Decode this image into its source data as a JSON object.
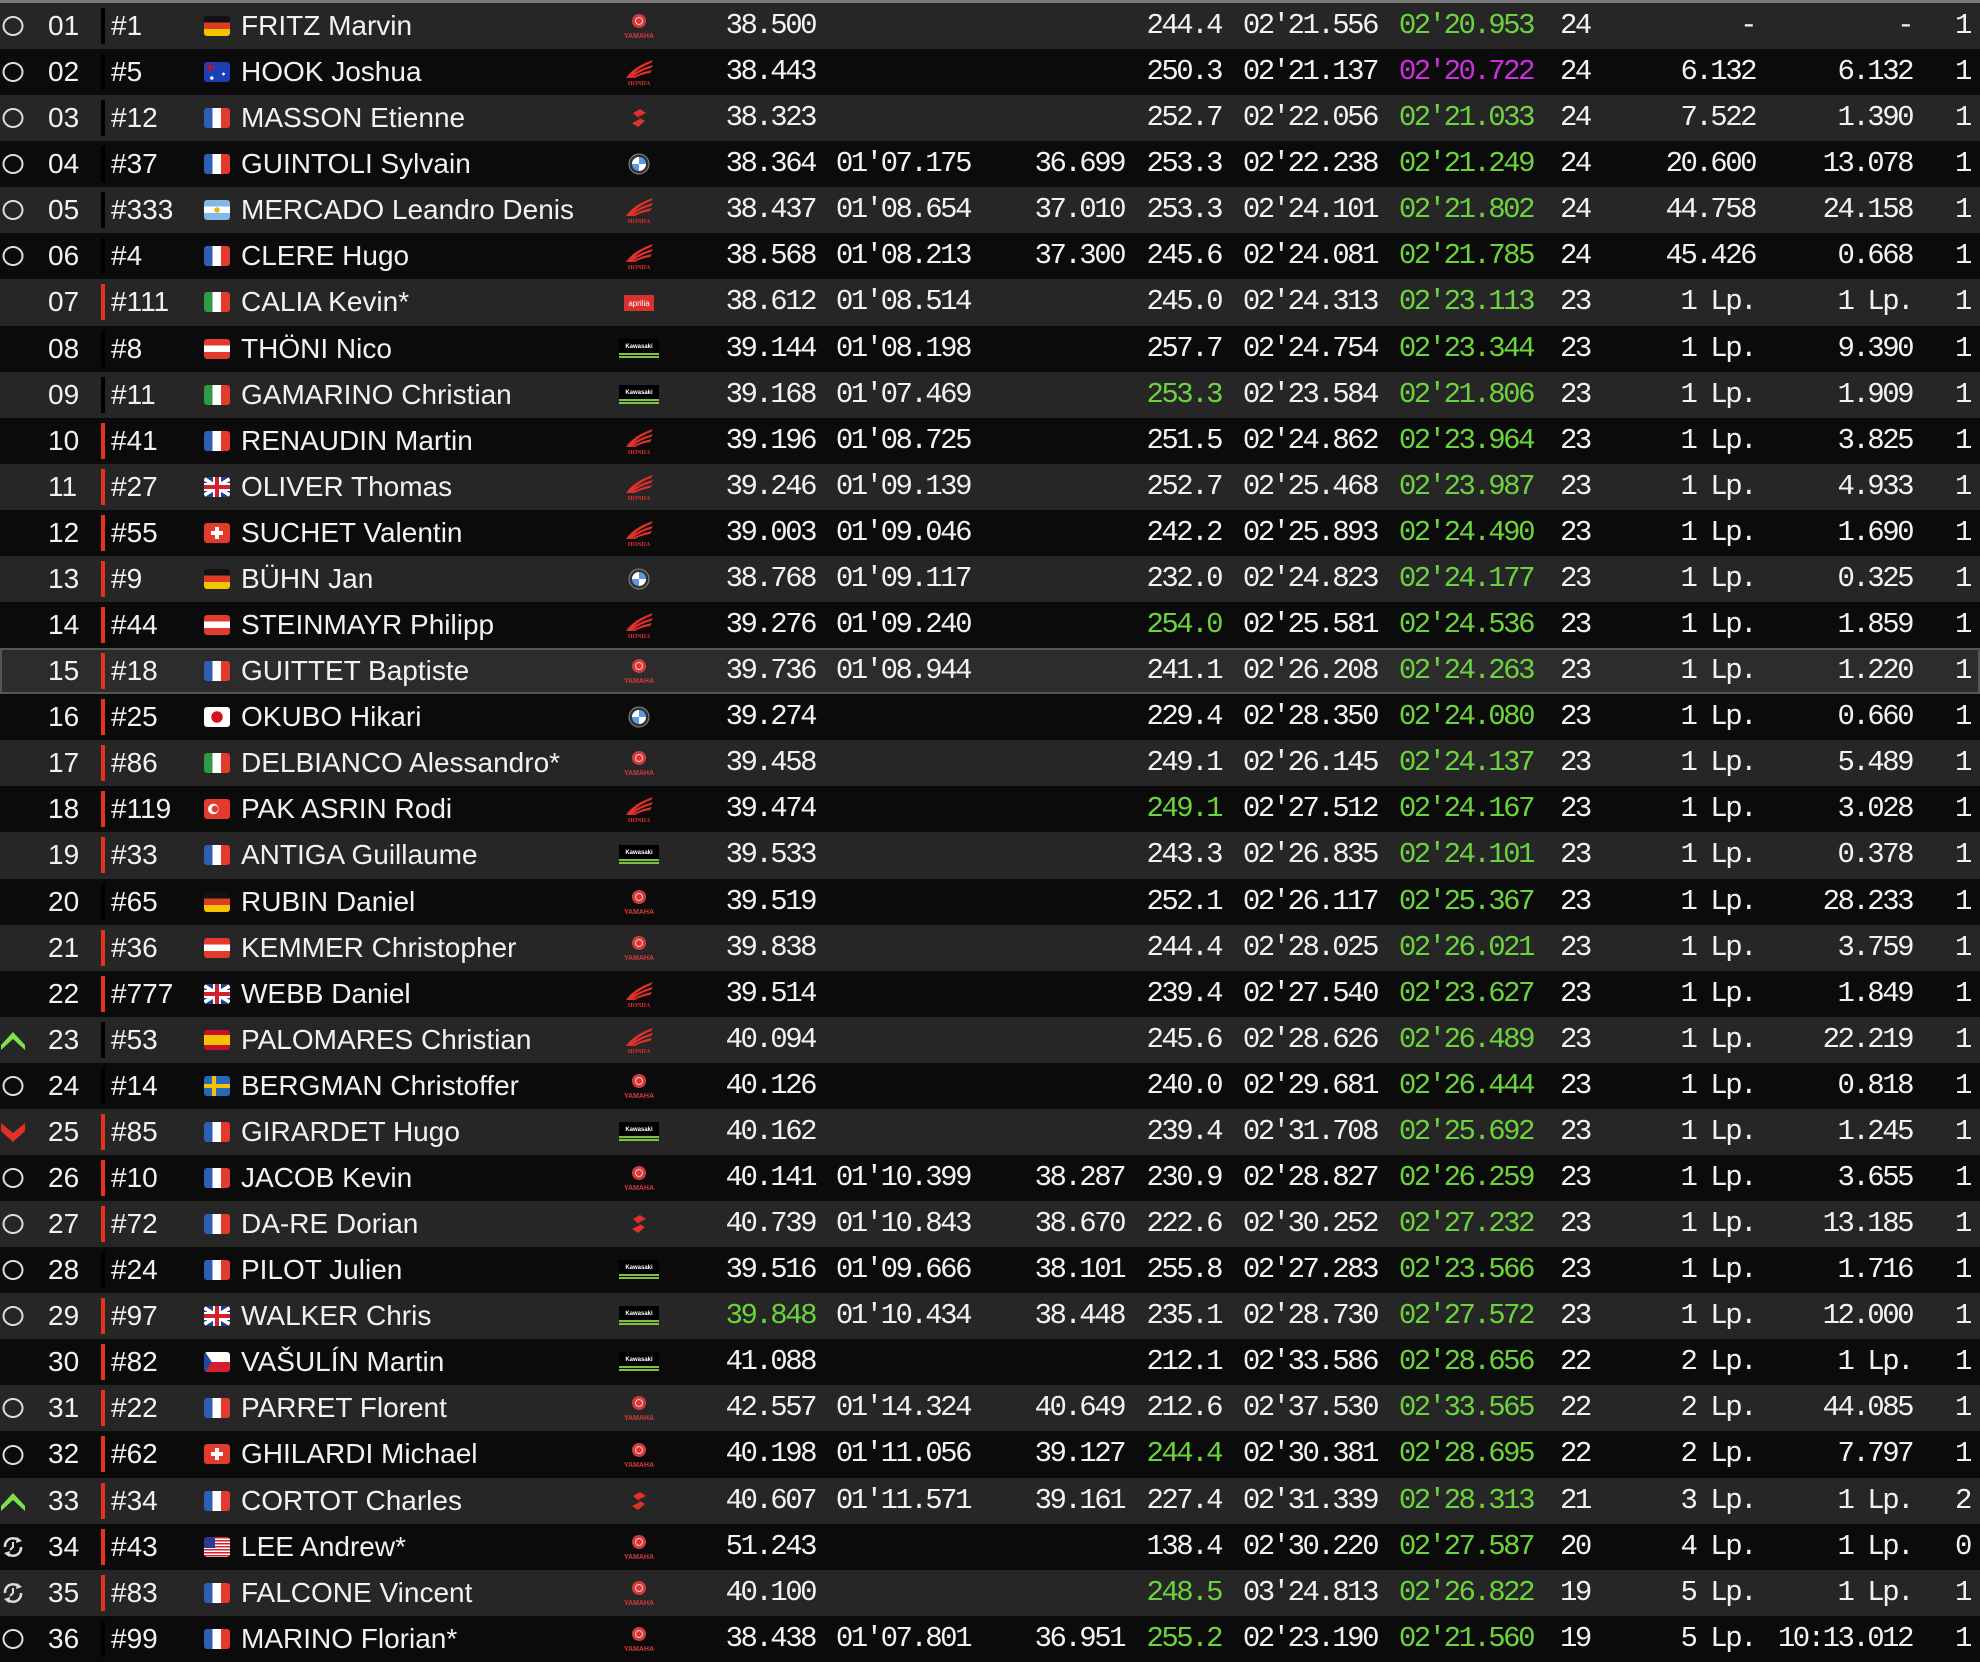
{
  "colors": {
    "green": "#6bd33d",
    "purple": "#cc2ee0",
    "bar_red": "#e8321e",
    "bar_black": "#000000",
    "row_odd": "#262626",
    "row_even": "#0b0b0b"
  },
  "rows": [
    {
      "status": "circle",
      "pos": "01",
      "bar": "black",
      "num": "#1",
      "flag": "de",
      "name": "FRITZ Marvin",
      "mfr": "yamaha",
      "s1": "38.500",
      "s2": "",
      "s3": "",
      "speed": "244.4",
      "lap": "02'21.556",
      "best": "02'20.953",
      "laps": "24",
      "gap": "-",
      "int": "-",
      "last": "1",
      "hl": {
        "best": "green"
      }
    },
    {
      "status": "circle",
      "pos": "02",
      "bar": "black",
      "num": "#5",
      "flag": "au",
      "name": "HOOK Joshua",
      "mfr": "honda",
      "s1": "38.443",
      "s2": "",
      "s3": "",
      "speed": "250.3",
      "lap": "02'21.137",
      "best": "02'20.722",
      "laps": "24",
      "gap": "6.132",
      "int": "6.132",
      "last": "1",
      "hl": {
        "best": "purple"
      }
    },
    {
      "status": "circle",
      "pos": "03",
      "bar": "black",
      "num": "#12",
      "flag": "fr",
      "name": "MASSON Etienne",
      "mfr": "suzuki",
      "s1": "38.323",
      "s2": "",
      "s3": "",
      "speed": "252.7",
      "lap": "02'22.056",
      "best": "02'21.033",
      "laps": "24",
      "gap": "7.522",
      "int": "1.390",
      "last": "1",
      "hl": {
        "best": "green"
      }
    },
    {
      "status": "circle",
      "pos": "04",
      "bar": "black",
      "num": "#37",
      "flag": "fr",
      "name": "GUINTOLI Sylvain",
      "mfr": "bmw",
      "s1": "38.364",
      "s2": "01'07.175",
      "s3": "36.699",
      "speed": "253.3",
      "lap": "02'22.238",
      "best": "02'21.249",
      "laps": "24",
      "gap": "20.600",
      "int": "13.078",
      "last": "1",
      "hl": {
        "best": "green"
      }
    },
    {
      "status": "circle",
      "pos": "05",
      "bar": "black",
      "num": "#333",
      "flag": "ar",
      "name": "MERCADO Leandro Denis",
      "mfr": "honda",
      "s1": "38.437",
      "s2": "01'08.654",
      "s3": "37.010",
      "speed": "253.3",
      "lap": "02'24.101",
      "best": "02'21.802",
      "laps": "24",
      "gap": "44.758",
      "int": "24.158",
      "last": "1",
      "hl": {
        "best": "green"
      }
    },
    {
      "status": "circle",
      "pos": "06",
      "bar": "black",
      "num": "#4",
      "flag": "fr",
      "name": "CLERE Hugo",
      "mfr": "honda",
      "s1": "38.568",
      "s2": "01'08.213",
      "s3": "37.300",
      "speed": "245.6",
      "lap": "02'24.081",
      "best": "02'21.785",
      "laps": "24",
      "gap": "45.426",
      "int": "0.668",
      "last": "1",
      "hl": {
        "best": "green"
      }
    },
    {
      "status": "none",
      "pos": "07",
      "bar": "red",
      "num": "#111",
      "flag": "it",
      "name": "CALIA Kevin*",
      "mfr": "aprilia",
      "s1": "38.612",
      "s2": "01'08.514",
      "s3": "",
      "speed": "245.0",
      "lap": "02'24.313",
      "best": "02'23.113",
      "laps": "23",
      "gap": "1 Lp.",
      "int": "1 Lp.",
      "last": "1",
      "hl": {
        "best": "green"
      }
    },
    {
      "status": "none",
      "pos": "08",
      "bar": "black",
      "num": "#8",
      "flag": "at",
      "name": "THÖNI Nico",
      "mfr": "kawasaki",
      "s1": "39.144",
      "s2": "01'08.198",
      "s3": "",
      "speed": "257.7",
      "lap": "02'24.754",
      "best": "02'23.344",
      "laps": "23",
      "gap": "1 Lp.",
      "int": "9.390",
      "last": "1",
      "hl": {
        "best": "green"
      }
    },
    {
      "status": "none",
      "pos": "09",
      "bar": "black",
      "num": "#11",
      "flag": "it",
      "name": "GAMARINO Christian",
      "mfr": "kawasaki",
      "s1": "39.168",
      "s2": "01'07.469",
      "s3": "",
      "speed": "253.3",
      "lap": "02'23.584",
      "best": "02'21.806",
      "laps": "23",
      "gap": "1 Lp.",
      "int": "1.909",
      "last": "1",
      "hl": {
        "best": "green",
        "speed": "green"
      }
    },
    {
      "status": "none",
      "pos": "10",
      "bar": "red",
      "num": "#41",
      "flag": "fr",
      "name": "RENAUDIN Martin",
      "mfr": "honda",
      "s1": "39.196",
      "s2": "01'08.725",
      "s3": "",
      "speed": "251.5",
      "lap": "02'24.862",
      "best": "02'23.964",
      "laps": "23",
      "gap": "1 Lp.",
      "int": "3.825",
      "last": "1",
      "hl": {
        "best": "green"
      }
    },
    {
      "status": "none",
      "pos": "11",
      "bar": "red",
      "num": "#27",
      "flag": "gb",
      "name": "OLIVER Thomas",
      "mfr": "honda",
      "s1": "39.246",
      "s2": "01'09.139",
      "s3": "",
      "speed": "252.7",
      "lap": "02'25.468",
      "best": "02'23.987",
      "laps": "23",
      "gap": "1 Lp.",
      "int": "4.933",
      "last": "1",
      "hl": {
        "best": "green"
      }
    },
    {
      "status": "none",
      "pos": "12",
      "bar": "red",
      "num": "#55",
      "flag": "ch",
      "name": "SUCHET Valentin",
      "mfr": "honda",
      "s1": "39.003",
      "s2": "01'09.046",
      "s3": "",
      "speed": "242.2",
      "lap": "02'25.893",
      "best": "02'24.490",
      "laps": "23",
      "gap": "1 Lp.",
      "int": "1.690",
      "last": "1",
      "hl": {
        "best": "green"
      }
    },
    {
      "status": "none",
      "pos": "13",
      "bar": "red",
      "num": "#9",
      "flag": "de",
      "name": "BÜHN Jan",
      "mfr": "bmw",
      "s1": "38.768",
      "s2": "01'09.117",
      "s3": "",
      "speed": "232.0",
      "lap": "02'24.823",
      "best": "02'24.177",
      "laps": "23",
      "gap": "1 Lp.",
      "int": "0.325",
      "last": "1",
      "hl": {
        "best": "green"
      }
    },
    {
      "status": "none",
      "pos": "14",
      "bar": "red",
      "num": "#44",
      "flag": "at",
      "name": "STEINMAYR Philipp",
      "mfr": "honda",
      "s1": "39.276",
      "s2": "01'09.240",
      "s3": "",
      "speed": "254.0",
      "lap": "02'25.581",
      "best": "02'24.536",
      "laps": "23",
      "gap": "1 Lp.",
      "int": "1.859",
      "last": "1",
      "hl": {
        "best": "green",
        "speed": "green"
      }
    },
    {
      "status": "none",
      "pos": "15",
      "bar": "red",
      "num": "#18",
      "flag": "fr",
      "name": "GUITTET Baptiste",
      "mfr": "yamaha",
      "s1": "39.736",
      "s2": "01'08.944",
      "s3": "",
      "speed": "241.1",
      "lap": "02'26.208",
      "best": "02'24.263",
      "laps": "23",
      "gap": "1 Lp.",
      "int": "1.220",
      "last": "1",
      "selected": true,
      "hl": {
        "best": "green"
      }
    },
    {
      "status": "none",
      "pos": "16",
      "bar": "red",
      "num": "#25",
      "flag": "jp",
      "name": "OKUBO Hikari",
      "mfr": "bmw",
      "s1": "39.274",
      "s2": "",
      "s3": "",
      "speed": "229.4",
      "lap": "02'28.350",
      "best": "02'24.080",
      "laps": "23",
      "gap": "1 Lp.",
      "int": "0.660",
      "last": "1",
      "hl": {
        "best": "green"
      }
    },
    {
      "status": "none",
      "pos": "17",
      "bar": "red",
      "num": "#86",
      "flag": "it",
      "name": "DELBIANCO Alessandro*",
      "mfr": "yamaha",
      "s1": "39.458",
      "s2": "",
      "s3": "",
      "speed": "249.1",
      "lap": "02'26.145",
      "best": "02'24.137",
      "laps": "23",
      "gap": "1 Lp.",
      "int": "5.489",
      "last": "1",
      "hl": {
        "best": "green"
      }
    },
    {
      "status": "none",
      "pos": "18",
      "bar": "red",
      "num": "#119",
      "flag": "tr",
      "name": "PAK ASRIN Rodi",
      "mfr": "honda",
      "s1": "39.474",
      "s2": "",
      "s3": "",
      "speed": "249.1",
      "lap": "02'27.512",
      "best": "02'24.167",
      "laps": "23",
      "gap": "1 Lp.",
      "int": "3.028",
      "last": "1",
      "hl": {
        "best": "green",
        "speed": "green"
      }
    },
    {
      "status": "none",
      "pos": "19",
      "bar": "red",
      "num": "#33",
      "flag": "fr",
      "name": "ANTIGA Guillaume",
      "mfr": "kawasaki",
      "s1": "39.533",
      "s2": "",
      "s3": "",
      "speed": "243.3",
      "lap": "02'26.835",
      "best": "02'24.101",
      "laps": "23",
      "gap": "1 Lp.",
      "int": "0.378",
      "last": "1",
      "hl": {
        "best": "green"
      }
    },
    {
      "status": "none",
      "pos": "20",
      "bar": "black",
      "num": "#65",
      "flag": "de",
      "name": "RUBIN Daniel",
      "mfr": "yamaha",
      "s1": "39.519",
      "s2": "",
      "s3": "",
      "speed": "252.1",
      "lap": "02'26.117",
      "best": "02'25.367",
      "laps": "23",
      "gap": "1 Lp.",
      "int": "28.233",
      "last": "1",
      "hl": {
        "best": "green"
      }
    },
    {
      "status": "none",
      "pos": "21",
      "bar": "red",
      "num": "#36",
      "flag": "at",
      "name": "KEMMER Christopher",
      "mfr": "yamaha",
      "s1": "39.838",
      "s2": "",
      "s3": "",
      "speed": "244.4",
      "lap": "02'28.025",
      "best": "02'26.021",
      "laps": "23",
      "gap": "1 Lp.",
      "int": "3.759",
      "last": "1",
      "hl": {
        "best": "green"
      }
    },
    {
      "status": "none",
      "pos": "22",
      "bar": "red",
      "num": "#777",
      "flag": "gb",
      "name": "WEBB Daniel",
      "mfr": "honda",
      "s1": "39.514",
      "s2": "",
      "s3": "",
      "speed": "239.4",
      "lap": "02'27.540",
      "best": "02'23.627",
      "laps": "23",
      "gap": "1 Lp.",
      "int": "1.849",
      "last": "1",
      "hl": {
        "best": "green"
      }
    },
    {
      "status": "up",
      "pos": "23",
      "bar": "black",
      "num": "#53",
      "flag": "es",
      "name": "PALOMARES Christian",
      "mfr": "honda",
      "s1": "40.094",
      "s2": "",
      "s3": "",
      "speed": "245.6",
      "lap": "02'28.626",
      "best": "02'26.489",
      "laps": "23",
      "gap": "1 Lp.",
      "int": "22.219",
      "last": "1",
      "hl": {
        "best": "green"
      }
    },
    {
      "status": "circle",
      "pos": "24",
      "bar": "black",
      "num": "#14",
      "flag": "se",
      "name": "BERGMAN Christoffer",
      "mfr": "yamaha",
      "s1": "40.126",
      "s2": "",
      "s3": "",
      "speed": "240.0",
      "lap": "02'29.681",
      "best": "02'26.444",
      "laps": "23",
      "gap": "1 Lp.",
      "int": "0.818",
      "last": "1",
      "hl": {
        "best": "green"
      }
    },
    {
      "status": "down",
      "pos": "25",
      "bar": "red",
      "num": "#85",
      "flag": "fr",
      "name": "GIRARDET Hugo",
      "mfr": "kawasaki",
      "s1": "40.162",
      "s2": "",
      "s3": "",
      "speed": "239.4",
      "lap": "02'31.708",
      "best": "02'25.692",
      "laps": "23",
      "gap": "1 Lp.",
      "int": "1.245",
      "last": "1",
      "hl": {
        "best": "green"
      }
    },
    {
      "status": "circle",
      "pos": "26",
      "bar": "red",
      "num": "#10",
      "flag": "fr",
      "name": "JACOB Kevin",
      "mfr": "yamaha",
      "s1": "40.141",
      "s2": "01'10.399",
      "s3": "38.287",
      "speed": "230.9",
      "lap": "02'28.827",
      "best": "02'26.259",
      "laps": "23",
      "gap": "1 Lp.",
      "int": "3.655",
      "last": "1",
      "hl": {
        "best": "green"
      }
    },
    {
      "status": "circle",
      "pos": "27",
      "bar": "red",
      "num": "#72",
      "flag": "fr",
      "name": "DA-RE Dorian",
      "mfr": "suzuki",
      "s1": "40.739",
      "s2": "01'10.843",
      "s3": "38.670",
      "speed": "222.6",
      "lap": "02'30.252",
      "best": "02'27.232",
      "laps": "23",
      "gap": "1 Lp.",
      "int": "13.185",
      "last": "1",
      "hl": {
        "best": "green"
      }
    },
    {
      "status": "circle",
      "pos": "28",
      "bar": "black",
      "num": "#24",
      "flag": "fr",
      "name": "PILOT Julien",
      "mfr": "kawasaki",
      "s1": "39.516",
      "s2": "01'09.666",
      "s3": "38.101",
      "speed": "255.8",
      "lap": "02'27.283",
      "best": "02'23.566",
      "laps": "23",
      "gap": "1 Lp.",
      "int": "1.716",
      "last": "1",
      "hl": {
        "best": "green"
      }
    },
    {
      "status": "circle",
      "pos": "29",
      "bar": "red",
      "num": "#97",
      "flag": "gb",
      "name": "WALKER Chris",
      "mfr": "kawasaki",
      "s1": "39.848",
      "s2": "01'10.434",
      "s3": "38.448",
      "speed": "235.1",
      "lap": "02'28.730",
      "best": "02'27.572",
      "laps": "23",
      "gap": "1 Lp.",
      "int": "12.000",
      "last": "1",
      "hl": {
        "best": "green",
        "s1": "green"
      }
    },
    {
      "status": "none",
      "pos": "30",
      "bar": "red",
      "num": "#82",
      "flag": "cz",
      "name": "VAŠULÍN Martin",
      "mfr": "kawasaki",
      "s1": "41.088",
      "s2": "",
      "s3": "",
      "speed": "212.1",
      "lap": "02'33.586",
      "best": "02'28.656",
      "laps": "22",
      "gap": "2 Lp.",
      "int": "1 Lp.",
      "last": "1",
      "hl": {
        "best": "green"
      }
    },
    {
      "status": "circle",
      "pos": "31",
      "bar": "red",
      "num": "#22",
      "flag": "fr",
      "name": "PARRET Florent",
      "mfr": "yamaha",
      "s1": "42.557",
      "s2": "01'14.324",
      "s3": "40.649",
      "speed": "212.6",
      "lap": "02'37.530",
      "best": "02'33.565",
      "laps": "22",
      "gap": "2 Lp.",
      "int": "44.085",
      "last": "1",
      "hl": {
        "best": "green"
      }
    },
    {
      "status": "circle",
      "pos": "32",
      "bar": "red",
      "num": "#62",
      "flag": "ch",
      "name": "GHILARDI Michael",
      "mfr": "yamaha",
      "s1": "40.198",
      "s2": "01'11.056",
      "s3": "39.127",
      "speed": "244.4",
      "lap": "02'30.381",
      "best": "02'28.695",
      "laps": "22",
      "gap": "2 Lp.",
      "int": "7.797",
      "last": "1",
      "hl": {
        "best": "green",
        "speed": "green"
      }
    },
    {
      "status": "up",
      "pos": "33",
      "bar": "red",
      "num": "#34",
      "flag": "fr",
      "name": "CORTOT Charles",
      "mfr": "suzuki",
      "s1": "40.607",
      "s2": "01'11.571",
      "s3": "39.161",
      "speed": "227.4",
      "lap": "02'31.339",
      "best": "02'28.313",
      "laps": "21",
      "gap": "3 Lp.",
      "int": "1 Lp.",
      "last": "2",
      "hl": {
        "best": "green"
      }
    },
    {
      "status": "pit",
      "pos": "34",
      "bar": "red",
      "num": "#43",
      "flag": "us",
      "name": "LEE Andrew*",
      "mfr": "yamaha",
      "s1": "51.243",
      "s2": "",
      "s3": "",
      "speed": "138.4",
      "lap": "02'30.220",
      "best": "02'27.587",
      "laps": "20",
      "gap": "4 Lp.",
      "int": "1 Lp.",
      "last": "0",
      "hl": {
        "best": "green"
      }
    },
    {
      "status": "pit",
      "pos": "35",
      "bar": "red",
      "num": "#83",
      "flag": "fr",
      "name": "FALCONE Vincent",
      "mfr": "yamaha",
      "s1": "40.100",
      "s2": "",
      "s3": "",
      "speed": "248.5",
      "lap": "03'24.813",
      "best": "02'26.822",
      "laps": "19",
      "gap": "5 Lp.",
      "int": "1 Lp.",
      "last": "1",
      "hl": {
        "best": "green",
        "speed": "green"
      }
    },
    {
      "status": "circle",
      "pos": "36",
      "bar": "black",
      "num": "#99",
      "flag": "fr",
      "name": "MARINO Florian*",
      "mfr": "yamaha",
      "s1": "38.438",
      "s2": "01'07.801",
      "s3": "36.951",
      "speed": "255.2",
      "lap": "02'23.190",
      "best": "02'21.560",
      "laps": "19",
      "gap": "5 Lp.",
      "int": "10:13.012",
      "last": "1",
      "hl": {
        "best": "green",
        "speed": "green"
      }
    }
  ]
}
